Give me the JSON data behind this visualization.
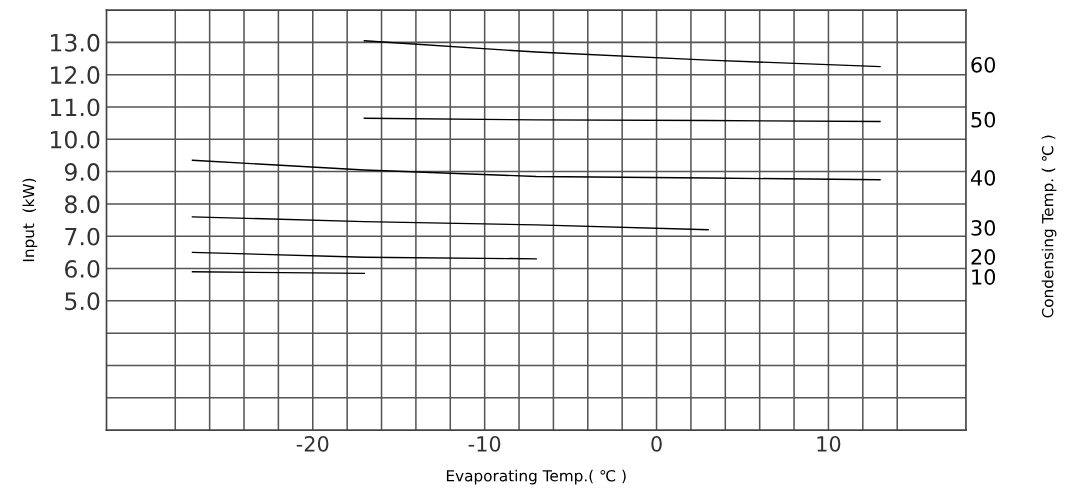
{
  "chart_data": {
    "type": "line",
    "xlabel": "Evaporating Temp.( ℃ )",
    "ylabel": "Input  (kW)",
    "y2label": "Condensing Temp. ( ℃ )",
    "xlim": [
      -32,
      18
    ],
    "ylim": [
      1,
      14
    ],
    "xticks": [
      {
        "value": -28,
        "label": null
      },
      {
        "value": -26,
        "label": null
      },
      {
        "value": -24,
        "label": null
      },
      {
        "value": -22,
        "label": null
      },
      -20,
      {
        "value": -18,
        "label": null
      },
      {
        "value": -16,
        "label": null
      },
      {
        "value": -14,
        "label": null
      },
      {
        "value": -12,
        "label": null
      },
      -10,
      {
        "value": -8,
        "label": null
      },
      {
        "value": -6,
        "label": null
      },
      {
        "value": -4,
        "label": null
      },
      {
        "value": -2,
        "label": null
      },
      0,
      {
        "value": 2,
        "label": null
      },
      {
        "value": 4,
        "label": null
      },
      {
        "value": 6,
        "label": null
      },
      {
        "value": 8,
        "label": null
      },
      10,
      {
        "value": 12,
        "label": null
      },
      {
        "value": 14,
        "label": null
      }
    ],
    "yticks": [
      {
        "value": 2,
        "label": null
      },
      {
        "value": 3,
        "label": null
      },
      {
        "value": 4,
        "label": null
      },
      {
        "value": 5,
        "label": "5.0"
      },
      {
        "value": 6,
        "label": "6.0"
      },
      {
        "value": 7,
        "label": "7.0"
      },
      {
        "value": 8,
        "label": "8.0"
      },
      {
        "value": 9,
        "label": "9.0"
      },
      {
        "value": 10,
        "label": "10.0"
      },
      {
        "value": 11,
        "label": "11.0"
      },
      {
        "value": 12,
        "label": "12.0"
      },
      {
        "value": 13,
        "label": "13.0"
      }
    ],
    "grid": true,
    "legend": false,
    "marker": "none",
    "line_style": "solid",
    "series": [
      {
        "name": "60",
        "color": "#000000",
        "x": [
          -17,
          -7,
          3,
          13
        ],
        "values": [
          13.05,
          12.7,
          12.45,
          12.25
        ]
      },
      {
        "name": "50",
        "color": "#000000",
        "x": [
          -17,
          -7,
          3,
          13
        ],
        "values": [
          10.65,
          10.6,
          10.58,
          10.55
        ]
      },
      {
        "name": "40",
        "color": "#000000",
        "x": [
          -27,
          -17,
          -7,
          3,
          13
        ],
        "values": [
          9.35,
          9.05,
          8.85,
          8.8,
          8.75
        ]
      },
      {
        "name": "30",
        "color": "#000000",
        "x": [
          -27,
          -17,
          -7,
          3
        ],
        "values": [
          7.6,
          7.45,
          7.35,
          7.2
        ]
      },
      {
        "name": "20",
        "color": "#000000",
        "x": [
          -27,
          -17,
          -7
        ],
        "values": [
          6.5,
          6.35,
          6.3
        ]
      },
      {
        "name": "10",
        "color": "#000000",
        "x": [
          -27,
          -17
        ],
        "values": [
          5.9,
          5.85
        ]
      }
    ]
  }
}
